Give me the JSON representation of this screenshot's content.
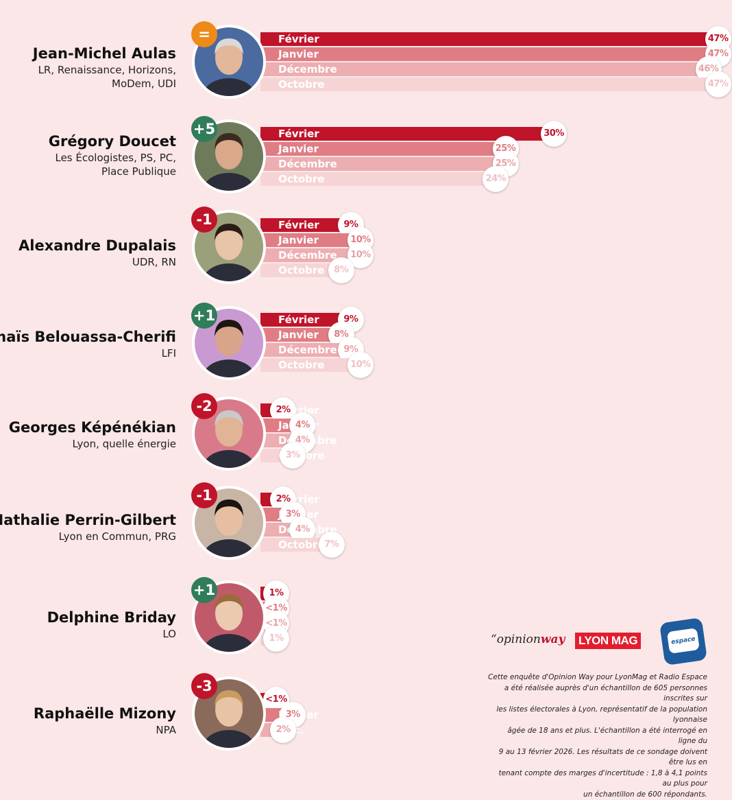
{
  "colors": {
    "background": "#fbe7e8",
    "bar_fevrier": "#c0142a",
    "bar_janvier": "#e07d84",
    "bar_decembre": "#ecaeb1",
    "bar_octobre": "#f6d4d5",
    "badge_up": "#2f7d5b",
    "badge_down": "#c0142a",
    "badge_equal": "#ee8a17"
  },
  "chart_data": {
    "type": "bar",
    "orientation": "horizontal",
    "series_names": [
      "Février",
      "Janvier",
      "Décembre",
      "Octobre"
    ],
    "candidates": [
      {
        "name": "Jean-Michel Aulas",
        "party_lines": [
          "LR, Renaissance, Horizons,",
          "MoDem, UDI"
        ],
        "change": "=",
        "change_sign": "equal",
        "bars": [
          {
            "label": "Février",
            "value": 47,
            "display": "47%"
          },
          {
            "label": "Janvier",
            "value": 47,
            "display": "47%"
          },
          {
            "label": "Décembre",
            "value": 46,
            "display": "46%"
          },
          {
            "label": "Octobre",
            "value": 47,
            "display": "47%"
          }
        ]
      },
      {
        "name": "Grégory Doucet",
        "party_lines": [
          "Les Écologistes, PS, PC,",
          "Place Publique"
        ],
        "change": "+5",
        "change_sign": "up",
        "bars": [
          {
            "label": "Février",
            "value": 30,
            "display": "30%"
          },
          {
            "label": "Janvier",
            "value": 25,
            "display": "25%"
          },
          {
            "label": "Décembre",
            "value": 25,
            "display": "25%"
          },
          {
            "label": "Octobre",
            "value": 24,
            "display": "24%"
          }
        ]
      },
      {
        "name": "Alexandre Dupalais",
        "party_lines": [
          "UDR, RN"
        ],
        "change": "-1",
        "change_sign": "down",
        "bars": [
          {
            "label": "Février",
            "value": 9,
            "display": "9%"
          },
          {
            "label": "Janvier",
            "value": 10,
            "display": "10%"
          },
          {
            "label": "Décembre",
            "value": 10,
            "display": "10%"
          },
          {
            "label": "Octobre",
            "value": 8,
            "display": "8%"
          }
        ]
      },
      {
        "name": "Anaïs Belouassa-Cherifi",
        "party_lines": [
          "LFI"
        ],
        "change": "+1",
        "change_sign": "up",
        "bars": [
          {
            "label": "Février",
            "value": 9,
            "display": "9%"
          },
          {
            "label": "Janvier",
            "value": 8,
            "display": "8%"
          },
          {
            "label": "Décembre",
            "value": 9,
            "display": "9%"
          },
          {
            "label": "Octobre",
            "value": 10,
            "display": "10%"
          }
        ]
      },
      {
        "name": "Georges Képénékian",
        "party_lines": [
          "Lyon, quelle énergie"
        ],
        "change": "-2",
        "change_sign": "down",
        "bars": [
          {
            "label": "Février",
            "value": 2,
            "display": "2%"
          },
          {
            "label": "Janvier",
            "value": 4,
            "display": "4%"
          },
          {
            "label": "Décembre",
            "value": 4,
            "display": "4%"
          },
          {
            "label": "Octobre",
            "value": 3,
            "display": "3%"
          }
        ]
      },
      {
        "name": "Nathalie Perrin-Gilbert",
        "party_lines": [
          "Lyon en Commun, PRG"
        ],
        "change": "-1",
        "change_sign": "down",
        "bars": [
          {
            "label": "Février",
            "value": 2,
            "display": "2%"
          },
          {
            "label": "Janvier",
            "value": 3,
            "display": "3%"
          },
          {
            "label": "Décembre",
            "value": 4,
            "display": "4%"
          },
          {
            "label": "Octobre",
            "value": 7,
            "display": "7%"
          }
        ]
      },
      {
        "name": "Delphine Briday",
        "party_lines": [
          "LO"
        ],
        "change": "+1",
        "change_sign": "up",
        "bars": [
          {
            "label": "",
            "value": 1,
            "display": "1%"
          },
          {
            "label": "",
            "value": 0.5,
            "display": "<1%"
          },
          {
            "label": "",
            "value": 0.5,
            "display": "<1%"
          },
          {
            "label": "",
            "value": 1,
            "display": "1%"
          }
        ]
      },
      {
        "name": "Raphaëlle Mizony",
        "party_lines": [
          "NPA"
        ],
        "change": "-3",
        "change_sign": "down",
        "bars": [
          {
            "label": "",
            "value": 0.5,
            "display": "<1%"
          },
          {
            "label": "Janvier",
            "value": 3,
            "display": "3%"
          },
          {
            "label": "Déc.",
            "value": 2,
            "display": "2%"
          }
        ]
      }
    ]
  },
  "logos": {
    "opinionway_prefix": "“opinion",
    "opinionway_suffix": "way",
    "lyonmag": "LYON MAG",
    "radio_espace": "espace"
  },
  "footnote_lines": [
    "Cette enquête d'Opinion Way pour LyonMag et Radio Espace",
    "a été réalisée auprès d'un échantillon de 605 personnes inscrites sur",
    "les listes électorales à Lyon, représentatif de la population lyonnaise",
    "âgée de 18 ans et plus. L'échantillon a été interrogé en ligne du",
    "9 au 13 février 2026. Les résultats de ce sondage doivent être lus en",
    "tenant compte des marges d'incertitude : 1,8 à 4,1 points au plus pour",
    "un échantillon de 600 répondants."
  ]
}
